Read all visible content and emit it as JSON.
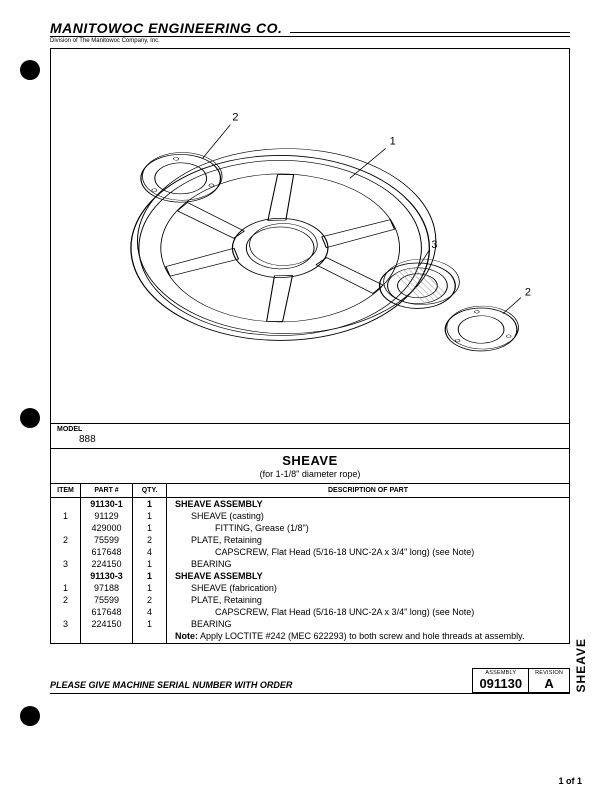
{
  "header": {
    "company": "MANITOWOC ENGINEERING CO.",
    "division": "Division of The Manitowoc Company, Inc."
  },
  "drawing": {
    "callouts": [
      "1",
      "2",
      "3",
      "2"
    ]
  },
  "model": {
    "label": "MODEL",
    "value": "888"
  },
  "title": {
    "main": "SHEAVE",
    "sub": "(for 1-1/8\" diameter rope)"
  },
  "table": {
    "headers": {
      "item": "ITEM",
      "part": "PART #",
      "qty": "QTY.",
      "desc": "DESCRIPTION OF PART"
    },
    "rows": [
      {
        "item": "",
        "part": "91130-1",
        "qty": "1",
        "desc": "SHEAVE ASSEMBLY",
        "bold": true,
        "indent": 0
      },
      {
        "item": "1",
        "part": "91129",
        "qty": "1",
        "desc": "SHEAVE (casting)",
        "indent": 1
      },
      {
        "item": "",
        "part": "429000",
        "qty": "1",
        "desc": "FITTING, Grease (1/8\")",
        "indent": 2
      },
      {
        "item": "2",
        "part": "75599",
        "qty": "2",
        "desc": "PLATE, Retaining",
        "indent": 1
      },
      {
        "item": "",
        "part": "617648",
        "qty": "4",
        "desc": "CAPSCREW, Flat Head (5/16-18 UNC-2A x 3/4\" long) (see Note)",
        "indent": 2
      },
      {
        "item": "3",
        "part": "224150",
        "qty": "1",
        "desc": "BEARING",
        "indent": 1
      },
      {
        "item": "",
        "part": "91130-3",
        "qty": "1",
        "desc": "SHEAVE ASSEMBLY",
        "bold": true,
        "indent": 0
      },
      {
        "item": "1",
        "part": "97188",
        "qty": "1",
        "desc": "SHEAVE (fabrication)",
        "indent": 1
      },
      {
        "item": "2",
        "part": "75599",
        "qty": "2",
        "desc": "PLATE, Retaining",
        "indent": 1
      },
      {
        "item": "",
        "part": "617648",
        "qty": "4",
        "desc": "CAPSCREW, Flat Head (5/16-18 UNC-2A x 3/4\" long) (see Note)",
        "indent": 2
      },
      {
        "item": "3",
        "part": "224150",
        "qty": "1",
        "desc": "BEARING",
        "indent": 1
      }
    ],
    "note_label": "Note:",
    "note_text": "Apply LOCTITE #242 (MEC 622293) to both screw and hole threads at assembly."
  },
  "footer": {
    "text": "PLEASE GIVE MACHINE SERIAL NUMBER WITH ORDER",
    "assembly_label": "ASSEMBLY",
    "assembly": "091130",
    "revision_label": "REVISION",
    "revision": "A",
    "tab": "SHEAVE",
    "page": "1 of 1"
  },
  "style": {
    "text_color": "#000000",
    "bg": "#ffffff",
    "line": "#000000",
    "hatch": "#6a6a6a"
  }
}
